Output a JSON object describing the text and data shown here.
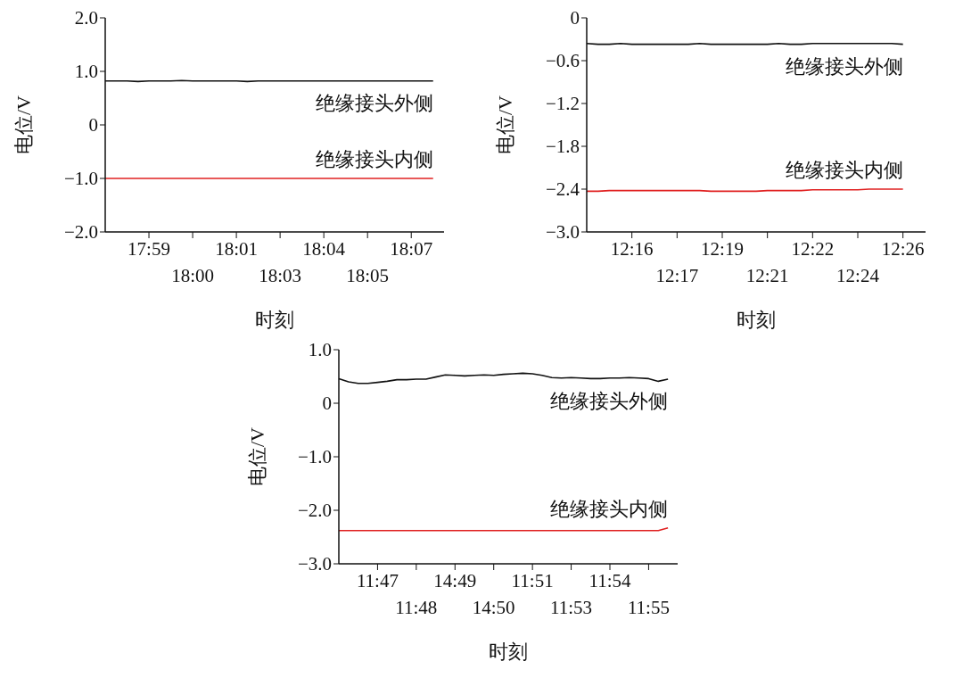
{
  "chart_data": [
    {
      "type": "line",
      "xlabel": "时刻",
      "ylabel": "电位/V",
      "ylim": [
        -2,
        2
      ],
      "yticks": [
        {
          "value": 2,
          "label": "2.0"
        },
        {
          "value": 1,
          "label": "1.0"
        },
        {
          "value": 0,
          "label": "0"
        },
        {
          "value": -1,
          "label": "−1.0"
        },
        {
          "value": -2,
          "label": "−2.0"
        }
      ],
      "categories": [
        null,
        null,
        null,
        null,
        "17:59",
        null,
        null,
        null,
        "18:00",
        null,
        null,
        null,
        "18:01",
        null,
        null,
        null,
        "18:03",
        null,
        null,
        null,
        "18:04",
        null,
        null,
        null,
        "18:05",
        null,
        null,
        null,
        "18:07",
        null,
        null,
        null
      ],
      "series": [
        {
          "name": "绝缘接头外侧",
          "color": "#111111",
          "values": [
            0.82,
            0.82,
            0.82,
            0.81,
            0.82,
            0.82,
            0.82,
            0.83,
            0.82,
            0.82,
            0.82,
            0.82,
            0.82,
            0.81,
            0.82,
            0.82,
            0.82,
            0.82,
            0.82,
            0.82,
            0.82,
            0.82,
            0.82,
            0.82,
            0.82,
            0.82,
            0.82,
            0.82,
            0.82,
            0.82,
            0.82,
            null
          ]
        },
        {
          "name": "绝缘接头内侧",
          "color": "#e02020",
          "values": [
            -1.0,
            -1.0,
            -1.0,
            -1.0,
            -1.0,
            -1.0,
            -1.0,
            -1.0,
            -1.0,
            -1.0,
            -1.0,
            -1.0,
            -1.0,
            -1.0,
            -1.0,
            -1.0,
            -1.0,
            -1.0,
            -1.0,
            -1.0,
            -1.0,
            -1.0,
            -1.0,
            -1.0,
            -1.0,
            -1.0,
            -1.0,
            -1.0,
            -1.0,
            -1.0,
            -1.0,
            null
          ]
        }
      ]
    },
    {
      "type": "line",
      "xlabel": "时刻",
      "ylabel": "电位/V",
      "ylim": [
        -3,
        0
      ],
      "yticks": [
        {
          "value": 0,
          "label": "0"
        },
        {
          "value": -0.6,
          "label": "−0.6"
        },
        {
          "value": -1.2,
          "label": "−1.2"
        },
        {
          "value": -1.8,
          "label": "−1.8"
        },
        {
          "value": -2.4,
          "label": "−2.4"
        },
        {
          "value": -3,
          "label": "−3.0"
        }
      ],
      "categories": [
        null,
        null,
        null,
        null,
        "12:16",
        null,
        null,
        null,
        "12:17",
        null,
        null,
        null,
        "12:19",
        null,
        null,
        null,
        "12:21",
        null,
        null,
        null,
        "12:22",
        null,
        null,
        null,
        "12:24",
        null,
        null,
        null,
        "12:26",
        null,
        null
      ],
      "series": [
        {
          "name": "绝缘接头外侧",
          "color": "#111111",
          "values": [
            -0.36,
            -0.37,
            -0.37,
            -0.36,
            -0.37,
            -0.37,
            -0.37,
            -0.37,
            -0.37,
            -0.37,
            -0.36,
            -0.37,
            -0.37,
            -0.37,
            -0.37,
            -0.37,
            -0.37,
            -0.36,
            -0.37,
            -0.37,
            -0.36,
            -0.36,
            -0.36,
            -0.36,
            -0.36,
            -0.36,
            -0.36,
            -0.36,
            -0.37,
            null,
            null
          ]
        },
        {
          "name": "绝缘接头内侧",
          "color": "#e02020",
          "values": [
            -2.43,
            -2.43,
            -2.42,
            -2.42,
            -2.42,
            -2.42,
            -2.42,
            -2.42,
            -2.42,
            -2.42,
            -2.42,
            -2.43,
            -2.43,
            -2.43,
            -2.43,
            -2.43,
            -2.42,
            -2.42,
            -2.42,
            -2.42,
            -2.41,
            -2.41,
            -2.41,
            -2.41,
            -2.41,
            -2.4,
            -2.4,
            -2.4,
            -2.4,
            null,
            null
          ]
        }
      ]
    },
    {
      "type": "line",
      "xlabel": "时刻",
      "ylabel": "电位/V",
      "ylim": [
        -3,
        1
      ],
      "yticks": [
        {
          "value": 1,
          "label": "1.0"
        },
        {
          "value": 0,
          "label": "0"
        },
        {
          "value": -1,
          "label": "−1.0"
        },
        {
          "value": -2,
          "label": "−2.0"
        },
        {
          "value": -3,
          "label": "−3.0"
        }
      ],
      "categories": [
        null,
        null,
        null,
        null,
        "11:47",
        null,
        null,
        null,
        "11:48",
        null,
        null,
        null,
        "14:49",
        null,
        null,
        null,
        "14:50",
        null,
        null,
        null,
        "11:51",
        null,
        null,
        null,
        "11:53",
        null,
        null,
        null,
        "11:54",
        null,
        null,
        null,
        "11:55",
        null,
        null,
        null
      ],
      "series": [
        {
          "name": "绝缘接头外侧",
          "color": "#111111",
          "values": [
            0.46,
            0.4,
            0.37,
            0.37,
            0.39,
            0.41,
            0.44,
            0.44,
            0.45,
            0.45,
            0.49,
            0.53,
            0.52,
            0.51,
            0.52,
            0.53,
            0.52,
            0.54,
            0.55,
            0.56,
            0.55,
            0.52,
            0.48,
            0.47,
            0.48,
            0.47,
            0.46,
            0.46,
            0.47,
            0.47,
            0.48,
            0.47,
            0.46,
            0.41,
            0.45,
            null
          ]
        },
        {
          "name": "绝缘接头内侧",
          "color": "#e02020",
          "values": [
            -2.38,
            -2.38,
            -2.38,
            -2.38,
            -2.38,
            -2.38,
            -2.38,
            -2.38,
            -2.38,
            -2.38,
            -2.38,
            -2.38,
            -2.38,
            -2.38,
            -2.38,
            -2.38,
            -2.38,
            -2.38,
            -2.38,
            -2.38,
            -2.38,
            -2.38,
            -2.38,
            -2.38,
            -2.38,
            -2.38,
            -2.38,
            -2.38,
            -2.38,
            -2.38,
            -2.38,
            -2.38,
            -2.38,
            -2.38,
            -2.33,
            null
          ]
        }
      ]
    }
  ]
}
